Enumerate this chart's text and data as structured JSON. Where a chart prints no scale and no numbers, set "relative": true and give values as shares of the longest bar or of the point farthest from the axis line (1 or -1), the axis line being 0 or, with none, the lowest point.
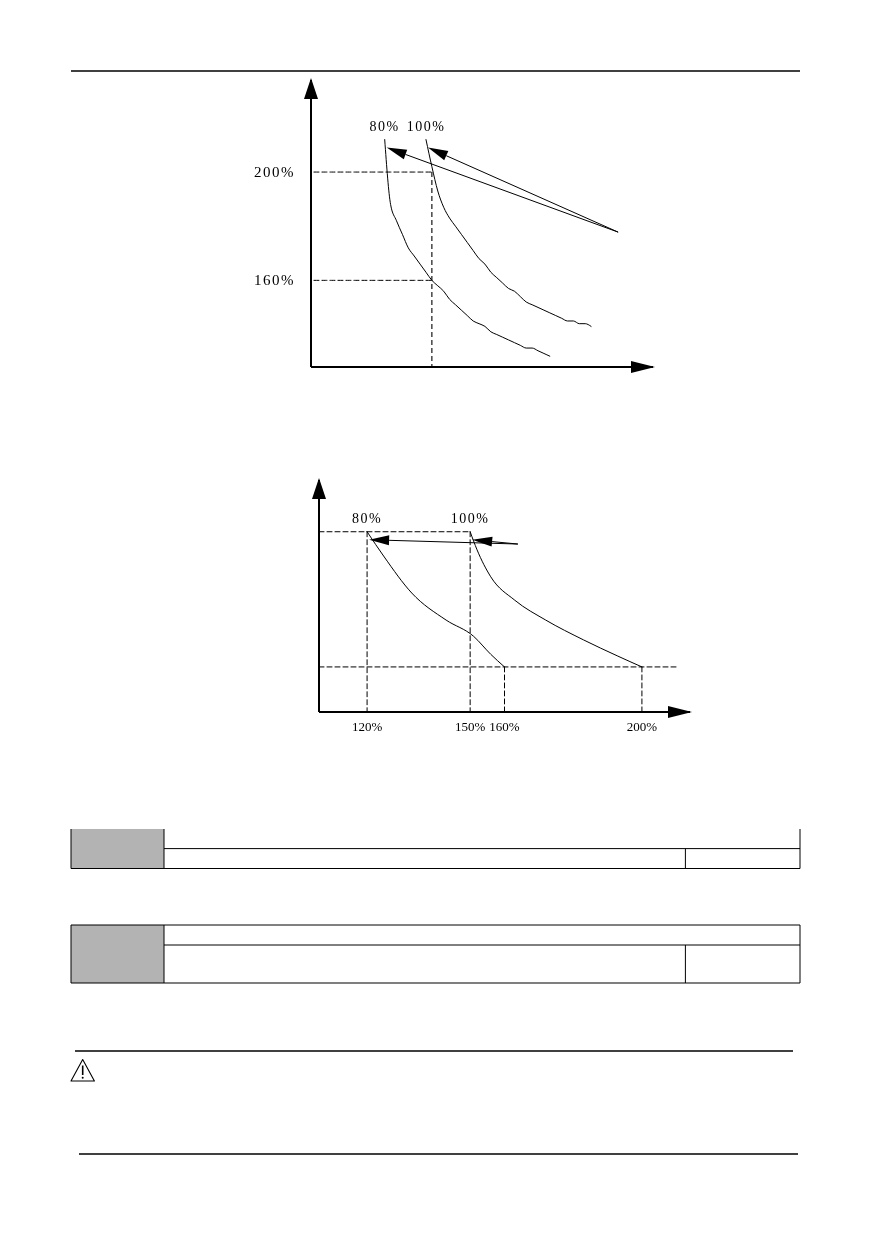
{
  "chart_data": [
    {
      "type": "line",
      "categories": [
        null,
        null,
        null,
        null,
        null,
        null,
        null,
        null,
        null,
        null,
        null,
        null,
        null,
        null,
        null,
        null,
        null,
        null,
        null,
        null,
        null,
        null,
        null,
        null,
        null,
        null,
        null,
        null,
        null,
        null,
        null,
        null,
        null,
        null,
        null,
        null,
        null,
        null,
        null,
        null,
        null,
        null,
        null,
        null,
        null,
        null,
        null,
        null,
        null,
        null,
        null,
        null,
        null,
        null,
        null,
        null,
        null,
        null
      ],
      "ylim": [
        128,
        234
      ],
      "yticks": [
        {
          "value": 200,
          "label": "200%"
        },
        {
          "value": 160,
          "label": "160%"
        }
      ],
      "tick_labels": "y",
      "series": [
        {
          "name": "80%",
          "color": "#000000",
          "values": [
            null,
            null,
            null,
            null,
            null,
            null,
            null,
            null,
            null,
            null,
            null,
            null,
            212,
            188,
            182,
            177,
            172,
            169,
            166,
            163,
            160,
            158,
            156,
            153,
            151,
            149,
            147,
            145,
            144,
            143,
            141,
            140,
            139,
            138,
            137,
            136,
            135,
            135,
            134,
            133,
            132,
            null,
            null,
            null,
            null,
            null,
            null,
            null,
            null,
            null,
            null,
            null,
            null,
            null,
            null,
            null,
            null,
            null
          ]
        },
        {
          "name": "100%",
          "color": "#000000",
          "values": [
            null,
            null,
            null,
            null,
            null,
            null,
            null,
            null,
            null,
            null,
            null,
            null,
            null,
            null,
            null,
            null,
            null,
            null,
            null,
            212,
            202,
            193,
            187,
            183,
            180,
            177,
            174,
            171,
            168,
            166,
            163,
            161,
            159,
            157,
            156,
            154,
            152,
            151,
            150,
            149,
            148,
            147,
            146,
            145,
            145,
            144,
            144,
            143,
            null,
            null,
            null,
            null,
            null,
            null,
            null,
            null,
            null,
            null
          ]
        },
        {
          "type": "line",
          "color": "#000000",
          "line_style": "dashed",
          "values": [
            200,
            200,
            200,
            200,
            200,
            200,
            200,
            200,
            200,
            200,
            200,
            200,
            200,
            200,
            200,
            200,
            200,
            200,
            200,
            200,
            200,
            null,
            null,
            null,
            null,
            null,
            null,
            null,
            null,
            null,
            null,
            null,
            null,
            null,
            null,
            null,
            null,
            null,
            null,
            null,
            null,
            null,
            null,
            null,
            null,
            null,
            null,
            null,
            null,
            null,
            null,
            null,
            null,
            null,
            null,
            null,
            null,
            null
          ]
        },
        {
          "type": "line",
          "color": "#000000",
          "line_style": "dashed",
          "values": [
            160,
            160,
            160,
            160,
            160,
            160,
            160,
            160,
            160,
            160,
            160,
            160,
            160,
            160,
            160,
            160,
            160,
            160,
            160,
            160,
            160,
            null,
            null,
            null,
            null,
            null,
            null,
            null,
            null,
            null,
            null,
            null,
            null,
            null,
            null,
            null,
            null,
            null,
            null,
            null,
            null,
            null,
            null,
            null,
            null,
            null,
            null,
            null,
            null,
            null,
            null,
            null,
            null,
            null,
            null,
            null,
            null,
            null
          ]
        }
      ]
    },
    {
      "type": "line",
      "relative": true,
      "xlim": [
        106,
        214
      ],
      "xticks": [
        {
          "value": 120,
          "label": "120%"
        },
        {
          "value": 150,
          "label": "150%"
        },
        {
          "value": 160,
          "label": "160%"
        },
        {
          "value": 200,
          "label": "200%"
        }
      ],
      "tick_labels": "x",
      "series": [
        {
          "name": "80%",
          "color": "#000000",
          "x": [
            120,
            125,
            133,
            143,
            151,
            156,
            160
          ],
          "values": [
            1,
            0.86,
            0.66,
            0.51,
            0.42,
            0.32,
            0.25
          ]
        },
        {
          "name": "100%",
          "color": "#000000",
          "x": [
            150,
            152,
            156,
            163,
            172,
            183,
            193,
            200
          ],
          "values": [
            1,
            0.9,
            0.75,
            0.62,
            0.51,
            0.4,
            0.31,
            0.25
          ]
        },
        {
          "type": "line",
          "color": "#000000",
          "line_style": "dashed",
          "x": [
            106,
            150
          ],
          "values": [
            1,
            1
          ]
        },
        {
          "type": "line",
          "color": "#000000",
          "line_style": "dashed",
          "x": [
            120,
            120
          ],
          "values": [
            1,
            0
          ]
        },
        {
          "type": "line",
          "color": "#000000",
          "line_style": "dashed",
          "x": [
            150,
            150
          ],
          "values": [
            1,
            0
          ]
        },
        {
          "type": "line",
          "color": "#000000",
          "line_style": "dashed",
          "x": [
            106,
            210
          ],
          "values": [
            0.25,
            0.25
          ]
        },
        {
          "type": "line",
          "color": "#000000",
          "line_style": "dashed",
          "x": [
            160,
            160
          ],
          "values": [
            0.25,
            0
          ]
        },
        {
          "type": "line",
          "color": "#000000",
          "line_style": "dashed",
          "x": [
            200,
            200
          ],
          "values": [
            0.25,
            0
          ]
        }
      ]
    }
  ]
}
